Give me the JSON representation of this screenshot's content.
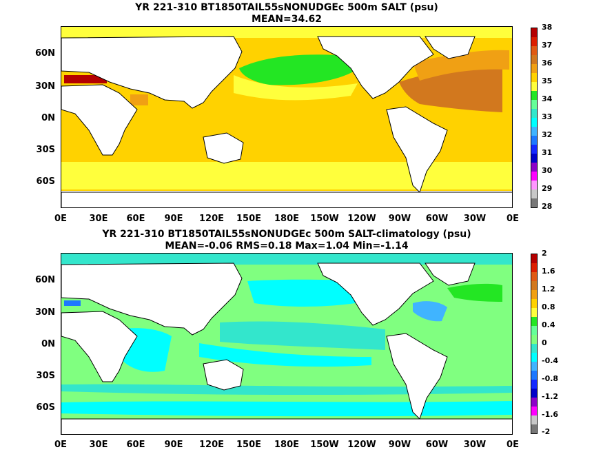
{
  "panels": [
    {
      "title": "YR 221-310 BT1850TAIL55sNONUDGEc 500m SALT (psu)",
      "subtitle": "MEAN=34.62",
      "lat_labels": [
        "60N",
        "30N",
        "0N",
        "30S",
        "60S"
      ],
      "lon_labels": [
        "0E",
        "30E",
        "60E",
        "90E",
        "120E",
        "150E",
        "180E",
        "150W",
        "120W",
        "90W",
        "60W",
        "30W",
        "0E"
      ],
      "colorbar": {
        "labels": [
          "38",
          "37",
          "36",
          "35",
          "34",
          "33",
          "32",
          "31",
          "30",
          "29",
          "28"
        ],
        "colors": [
          "#b40000",
          "#dc1e00",
          "#e05a14",
          "#d2781e",
          "#f0a014",
          "#ffd200",
          "#ffff3c",
          "#23e623",
          "#66ff99",
          "#33e6cc",
          "#00ffff",
          "#40b4ff",
          "#1e78ff",
          "#1428ff",
          "#0000c8",
          "#8c00c8",
          "#ff00ff",
          "#ff96ff",
          "#c8c8c8",
          "#787878"
        ]
      }
    },
    {
      "title": "YR 221-310 BT1850TAIL55sNONUDGEc 500m SALT-climatology (psu)",
      "subtitle": "MEAN=-0.06   RMS=0.18   Max=1.04   Min=-1.14",
      "lat_labels": [
        "60N",
        "30N",
        "0N",
        "30S",
        "60S"
      ],
      "lon_labels": [
        "0E",
        "30E",
        "60E",
        "90E",
        "120E",
        "150E",
        "180E",
        "150W",
        "120W",
        "90W",
        "60W",
        "30W",
        "0E"
      ],
      "colorbar": {
        "labels": [
          "2",
          "1.6",
          "1.2",
          "0.8",
          "0.4",
          "0",
          "-0.4",
          "-0.8",
          "-1.2",
          "-1.6",
          "-2"
        ],
        "colors": [
          "#b40000",
          "#dc1e00",
          "#e05a14",
          "#d2781e",
          "#f0a014",
          "#ffd200",
          "#ffff3c",
          "#23e623",
          "#66ff99",
          "#80ff80",
          "#33e6cc",
          "#00ffff",
          "#40b4ff",
          "#1e78ff",
          "#1428ff",
          "#0000c8",
          "#8c00c8",
          "#ff00ff",
          "#c8c8c8",
          "#787878"
        ]
      }
    }
  ]
}
